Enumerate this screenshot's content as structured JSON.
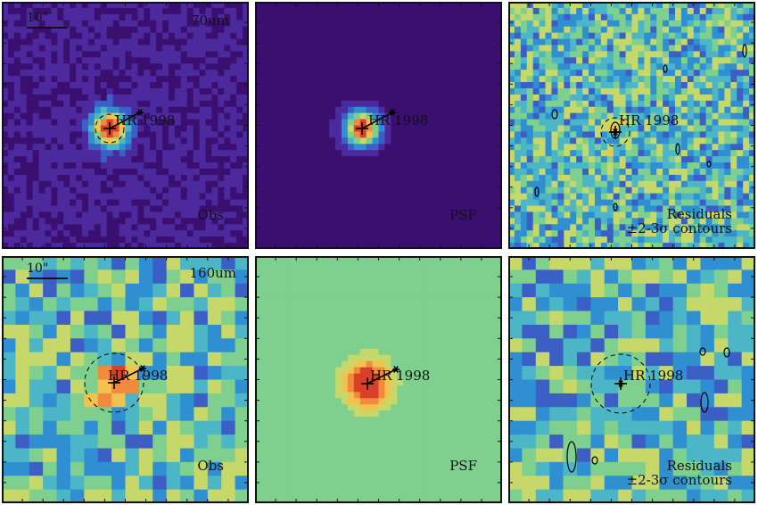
{
  "figure": {
    "rows": [
      {
        "wavelength_label": "70um",
        "scale_label": "10\"",
        "panels": [
          {
            "id": "obs",
            "label": "Obs",
            "map": "obs70"
          },
          {
            "id": "psf",
            "label": "PSF",
            "map": "psf70"
          },
          {
            "id": "res",
            "label_line1": "Residuals",
            "label_line2": "±2-3σ contours",
            "map": "res70"
          }
        ]
      },
      {
        "wavelength_label": "160um",
        "scale_label": "10\"",
        "panels": [
          {
            "id": "obs",
            "label": "Obs",
            "map": "obs160"
          },
          {
            "id": "psf",
            "label": "PSF",
            "map": "psf160"
          },
          {
            "id": "res",
            "label_line1": "Residuals",
            "label_line2": "±2-3σ contours",
            "map": "res160"
          }
        ]
      }
    ],
    "source_label": "HR 1998",
    "colors": {
      "background_70": "#4a2a8a",
      "psf_background_160": "#6fbf94",
      "frame": "#111111",
      "marker": "#000000"
    },
    "colormap": [
      "#3b0f70",
      "#4c2a9e",
      "#3b5fc4",
      "#2f8fd0",
      "#4cb6c7",
      "#7fcf8f",
      "#c7d86a",
      "#f2c14e",
      "#f08a3c",
      "#d9402a"
    ]
  }
}
